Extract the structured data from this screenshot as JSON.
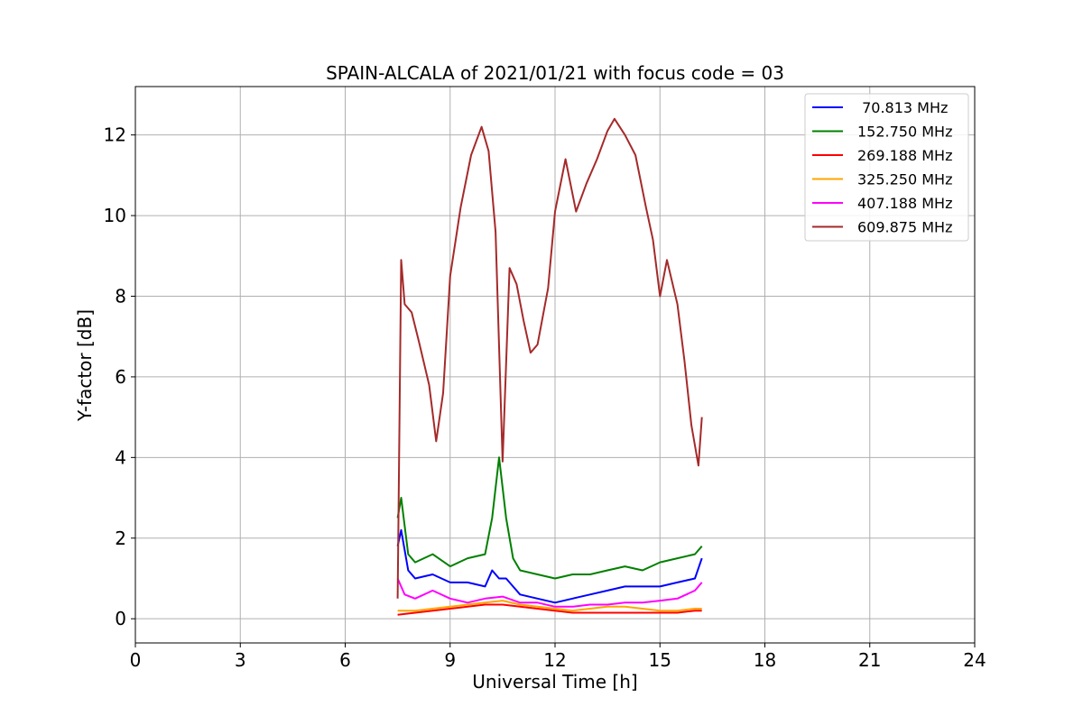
{
  "chart_data": {
    "type": "line",
    "title": "SPAIN-ALCALA of 2021/01/21 with focus code = 03",
    "xlabel": "Universal Time [h]",
    "ylabel": "Y-factor [dB]",
    "xlim": [
      0,
      24
    ],
    "ylim": [
      -0.6,
      13.2
    ],
    "xticks": [
      0,
      3,
      6,
      9,
      12,
      15,
      18,
      21,
      24
    ],
    "yticks": [
      0,
      2,
      4,
      6,
      8,
      10,
      12
    ],
    "grid": true,
    "legend_position": "top-right",
    "series": [
      {
        "name": " 70.813 MHz",
        "color": "#0000ff",
        "x": [
          7.5,
          7.6,
          7.8,
          8.0,
          8.5,
          9.0,
          9.5,
          10.0,
          10.2,
          10.4,
          10.6,
          10.8,
          11.0,
          11.5,
          12.0,
          12.5,
          13.0,
          13.5,
          14.0,
          14.5,
          15.0,
          15.5,
          16.0,
          16.2
        ],
        "y": [
          1.8,
          2.2,
          1.2,
          1.0,
          1.1,
          0.9,
          0.9,
          0.8,
          1.2,
          1.0,
          1.0,
          0.8,
          0.6,
          0.5,
          0.4,
          0.5,
          0.6,
          0.7,
          0.8,
          0.8,
          0.8,
          0.9,
          1.0,
          1.5
        ]
      },
      {
        "name": "152.750 MHz",
        "color": "#008000",
        "x": [
          7.5,
          7.6,
          7.8,
          8.0,
          8.5,
          9.0,
          9.5,
          10.0,
          10.2,
          10.4,
          10.6,
          10.8,
          11.0,
          11.5,
          12.0,
          12.5,
          13.0,
          13.5,
          14.0,
          14.5,
          15.0,
          15.5,
          16.0,
          16.2
        ],
        "y": [
          2.5,
          3.0,
          1.6,
          1.4,
          1.6,
          1.3,
          1.5,
          1.6,
          2.5,
          4.0,
          2.5,
          1.5,
          1.2,
          1.1,
          1.0,
          1.1,
          1.1,
          1.2,
          1.3,
          1.2,
          1.4,
          1.5,
          1.6,
          1.8
        ]
      },
      {
        "name": "269.188 MHz",
        "color": "#ff0000",
        "x": [
          7.5,
          8.0,
          8.5,
          9.0,
          9.5,
          10.0,
          10.5,
          11.0,
          11.5,
          12.0,
          12.5,
          13.0,
          13.5,
          14.0,
          14.5,
          15.0,
          15.5,
          16.0,
          16.2
        ],
        "y": [
          0.1,
          0.15,
          0.2,
          0.25,
          0.3,
          0.35,
          0.35,
          0.3,
          0.25,
          0.2,
          0.15,
          0.15,
          0.15,
          0.15,
          0.15,
          0.15,
          0.15,
          0.2,
          0.2
        ]
      },
      {
        "name": "325.250 MHz",
        "color": "#ffa500",
        "x": [
          7.5,
          8.0,
          8.5,
          9.0,
          9.5,
          10.0,
          10.5,
          11.0,
          11.5,
          12.0,
          12.5,
          13.0,
          13.5,
          14.0,
          14.5,
          15.0,
          15.5,
          16.0,
          16.2
        ],
        "y": [
          0.2,
          0.2,
          0.25,
          0.3,
          0.35,
          0.4,
          0.45,
          0.35,
          0.3,
          0.25,
          0.2,
          0.25,
          0.3,
          0.3,
          0.25,
          0.2,
          0.2,
          0.25,
          0.25
        ]
      },
      {
        "name": "407.188 MHz",
        "color": "#ff00ff",
        "x": [
          7.5,
          7.7,
          8.0,
          8.5,
          9.0,
          9.5,
          10.0,
          10.5,
          11.0,
          11.5,
          12.0,
          12.5,
          13.0,
          13.5,
          14.0,
          14.5,
          15.0,
          15.5,
          16.0,
          16.2
        ],
        "y": [
          1.0,
          0.6,
          0.5,
          0.7,
          0.5,
          0.4,
          0.5,
          0.55,
          0.4,
          0.4,
          0.3,
          0.3,
          0.35,
          0.35,
          0.4,
          0.4,
          0.45,
          0.5,
          0.7,
          0.9
        ]
      },
      {
        "name": "609.875 MHz",
        "color": "#a52a2a",
        "x": [
          7.5,
          7.6,
          7.7,
          7.9,
          8.1,
          8.4,
          8.6,
          8.8,
          9.0,
          9.3,
          9.6,
          9.9,
          10.1,
          10.3,
          10.5,
          10.7,
          10.9,
          11.1,
          11.3,
          11.5,
          11.8,
          12.0,
          12.3,
          12.6,
          12.9,
          13.2,
          13.5,
          13.7,
          14.0,
          14.3,
          14.6,
          14.8,
          15.0,
          15.2,
          15.5,
          15.7,
          15.9,
          16.1,
          16.2
        ],
        "y": [
          0.5,
          8.9,
          7.8,
          7.6,
          6.9,
          5.8,
          4.4,
          5.6,
          8.5,
          10.2,
          11.5,
          12.2,
          11.6,
          9.6,
          3.9,
          8.7,
          8.3,
          7.4,
          6.6,
          6.8,
          8.2,
          10.1,
          11.4,
          10.1,
          10.8,
          11.4,
          12.1,
          12.4,
          12.0,
          11.5,
          10.2,
          9.4,
          8.0,
          8.9,
          7.8,
          6.4,
          4.8,
          3.8,
          5.0
        ]
      }
    ]
  }
}
